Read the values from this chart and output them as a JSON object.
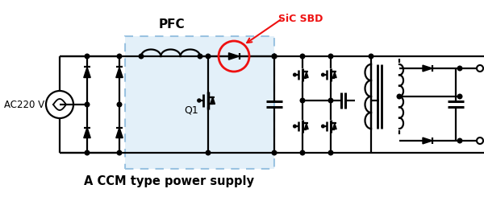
{
  "title": "A CCM type power supply",
  "label_pfc": "PFC",
  "label_sic": "SiC SBD",
  "label_ac": "AC220 V",
  "label_q1": "Q1",
  "bg_color": "#ffffff",
  "pfc_box_color": "#cce5f5",
  "pfc_box_edge": "#5599cc",
  "line_color": "#000000",
  "red_color": "#ee1111",
  "title_fontsize": 10.5,
  "label_fontsize": 10
}
